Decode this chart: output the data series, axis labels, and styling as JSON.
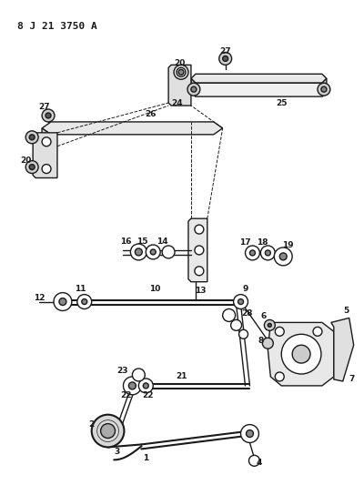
{
  "title": "8 J 21 3750 A",
  "bg_color": "#ffffff",
  "line_color": "#1a1a1a",
  "fig_width": 4.0,
  "fig_height": 5.33,
  "dpi": 100
}
